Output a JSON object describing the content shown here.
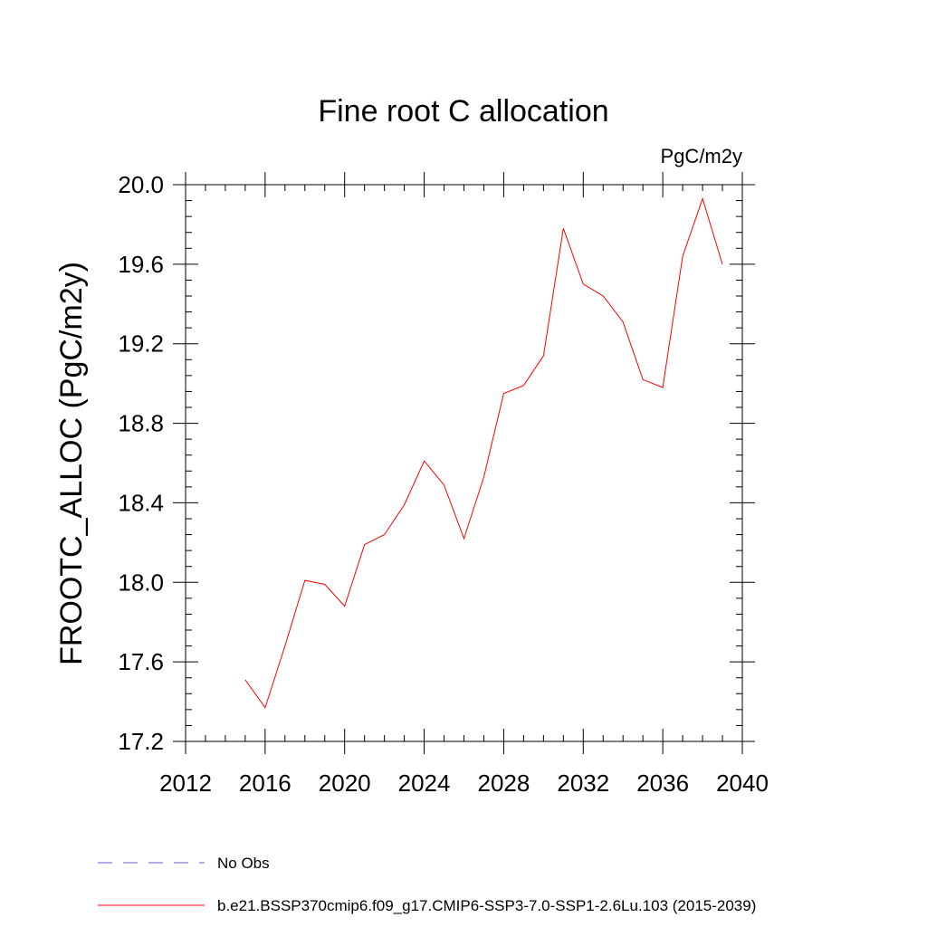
{
  "chart_data": {
    "type": "line",
    "title": "Fine root C allocation",
    "units": "PgC/m2y",
    "xlabel": "",
    "ylabel": "FROOTC_ALLOC  (PgC/m2y)",
    "xlim": [
      2012,
      2040
    ],
    "ylim": [
      17.2,
      20.0
    ],
    "x_ticks": [
      2012,
      2016,
      2020,
      2024,
      2028,
      2032,
      2036,
      2040
    ],
    "x_tick_labels": [
      "2012",
      "2016",
      "2020",
      "2024",
      "2028",
      "2032",
      "2036",
      "2040"
    ],
    "y_ticks": [
      17.2,
      17.6,
      18.0,
      18.4,
      18.8,
      19.2,
      19.6,
      20.0
    ],
    "y_tick_labels": [
      "17.2",
      "17.6",
      "18.0",
      "18.4",
      "18.8",
      "19.2",
      "19.6",
      "20.0"
    ],
    "x_minor_step": 1,
    "y_minor_step": 0.08,
    "series": [
      {
        "name": "b.e21.BSSP370cmip6.f09_g17.CMIP6-SSP3-7.0-SSP1-2.6Lu.103 (2015-2039)",
        "color": "#ff0000",
        "style": "solid",
        "x": [
          2015,
          2016,
          2017,
          2018,
          2019,
          2020,
          2021,
          2022,
          2023,
          2024,
          2025,
          2026,
          2027,
          2028,
          2029,
          2030,
          2031,
          2032,
          2033,
          2034,
          2035,
          2036,
          2037,
          2038,
          2039
        ],
        "values": [
          17.51,
          17.37,
          17.68,
          18.01,
          17.99,
          17.88,
          18.19,
          18.24,
          18.39,
          18.61,
          18.49,
          18.22,
          18.53,
          18.95,
          18.99,
          19.14,
          19.78,
          19.5,
          19.44,
          19.31,
          19.02,
          18.98,
          19.64,
          19.93,
          19.6
        ]
      }
    ],
    "legend": [
      {
        "label": "No Obs",
        "color": "#6a5acd",
        "style": "dashed"
      },
      {
        "label": "b.e21.BSSP370cmip6.f09_g17.CMIP6-SSP3-7.0-SSP1-2.6Lu.103 (2015-2039)",
        "color": "#ff0000",
        "style": "solid"
      }
    ]
  }
}
